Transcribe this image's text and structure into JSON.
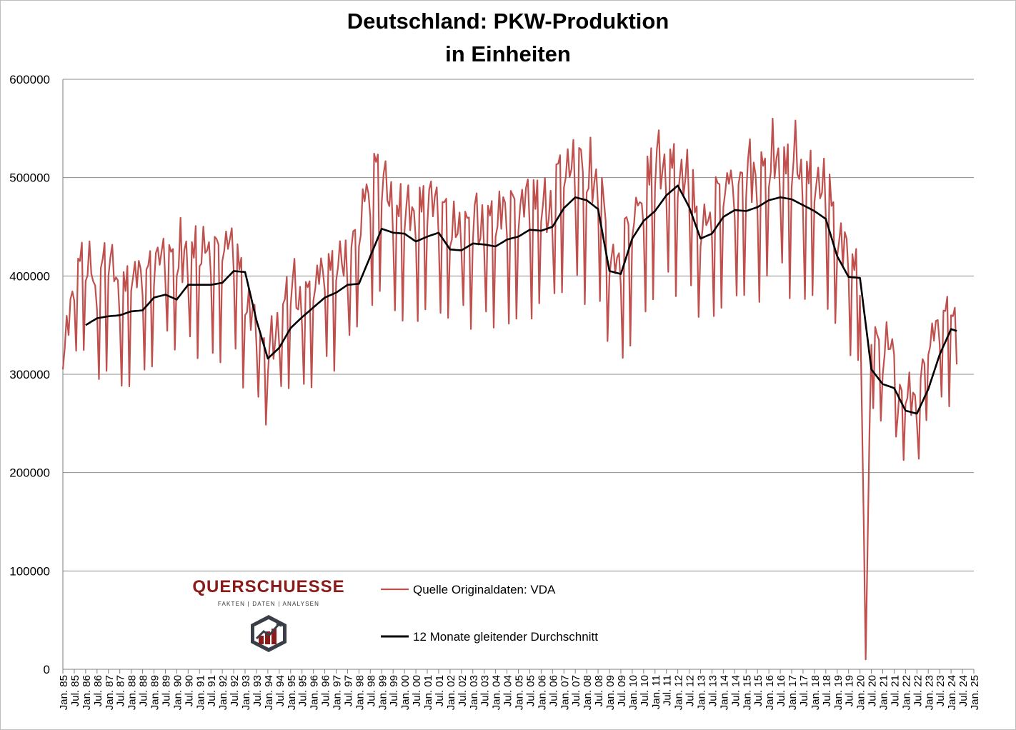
{
  "chart_data": {
    "type": "line",
    "title": "Deutschland: PKW-Produktion",
    "subtitle": "in Einheiten",
    "xlabel": "",
    "ylabel": "",
    "ylim": [
      0,
      600000
    ],
    "yticks": [
      0,
      100000,
      200000,
      300000,
      400000,
      500000,
      600000
    ],
    "ytick_labels": [
      "0",
      "100000",
      "200000",
      "300000",
      "400000",
      "500000",
      "600000"
    ],
    "x_start": "1985-01",
    "x_end": "2025-01",
    "xtick_labels": [
      "Jan. 85",
      "Jul. 85",
      "Jan. 86",
      "Jul. 86",
      "Jan. 87",
      "Jul. 87",
      "Jan. 88",
      "Jul. 88",
      "Jan. 89",
      "Jul. 89",
      "Jan. 90",
      "Jul. 90",
      "Jan. 91",
      "Jul. 91",
      "Jan. 92",
      "Jul. 92",
      "Jan. 93",
      "Jul. 93",
      "Jan. 94",
      "Jul. 94",
      "Jan. 95",
      "Jul. 95",
      "Jan. 96",
      "Jul. 96",
      "Jan. 97",
      "Jul. 97",
      "Jan. 98",
      "Jul. 98",
      "Jan. 99",
      "Jul. 99",
      "Jan. 00",
      "Jul. 00",
      "Jan. 01",
      "Jul. 01",
      "Jan. 02",
      "Jul. 02",
      "Jan. 03",
      "Jul. 03",
      "Jan. 04",
      "Jul. 04",
      "Jan. 05",
      "Jul. 05",
      "Jan. 06",
      "Jul. 06",
      "Jan. 07",
      "Jul. 07",
      "Jan. 08",
      "Jul. 08",
      "Jan. 09",
      "Jul. 09",
      "Jan. 10",
      "Jul. 10",
      "Jan. 11",
      "Jul. 11",
      "Jan. 12",
      "Jul. 12",
      "Jan. 13",
      "Jul. 13",
      "Jan. 14",
      "Jul. 14",
      "Jan. 15",
      "Jul. 15",
      "Jan. 16",
      "Jul. 16",
      "Jan. 17",
      "Jul. 17",
      "Jan. 18",
      "Jul. 18",
      "Jan. 19",
      "Jul. 19",
      "Jan. 20",
      "Jul. 20",
      "Jan. 21",
      "Jul. 21",
      "Jan. 22",
      "Jul. 22",
      "Jan. 23",
      "Jul. 23",
      "Jan. 24",
      "Jul. 24",
      "Jan. 25"
    ],
    "grid": true,
    "legend_position": "bottom-center",
    "series": [
      {
        "name": "Quelle Originaldaten: VDA",
        "color": "#c0504d",
        "style": "monthly",
        "x": [
          "1985-01",
          "1985-07",
          "1986-01",
          "1986-07",
          "1987-01",
          "1987-07",
          "1988-01",
          "1988-07",
          "1989-01",
          "1989-07",
          "1990-01",
          "1990-07",
          "1991-01",
          "1991-07",
          "1992-01",
          "1992-07",
          "1993-01",
          "1993-07",
          "1994-01",
          "1994-07",
          "1995-01",
          "1995-07",
          "1996-01",
          "1996-07",
          "1997-01",
          "1997-07",
          "1998-01",
          "1998-07",
          "1999-01",
          "1999-07",
          "2000-01",
          "2000-07",
          "2001-01",
          "2001-07",
          "2002-01",
          "2002-07",
          "2003-01",
          "2003-07",
          "2004-01",
          "2004-07",
          "2005-01",
          "2005-07",
          "2006-01",
          "2006-07",
          "2007-01",
          "2007-07",
          "2008-01",
          "2008-07",
          "2009-01",
          "2009-07",
          "2010-01",
          "2010-07",
          "2011-01",
          "2011-07",
          "2012-01",
          "2012-07",
          "2013-01",
          "2013-07",
          "2014-01",
          "2014-07",
          "2015-01",
          "2015-07",
          "2016-01",
          "2016-07",
          "2017-01",
          "2017-07",
          "2018-01",
          "2018-07",
          "2019-01",
          "2019-07",
          "2020-01",
          "2020-04",
          "2020-07",
          "2021-01",
          "2021-07",
          "2021-09",
          "2022-01",
          "2022-07",
          "2023-01",
          "2023-07",
          "2024-01",
          "2024-04"
        ],
        "y": [
          305000,
          375000,
          395000,
          365000,
          400000,
          355000,
          385000,
          380000,
          390000,
          395000,
          400000,
          390000,
          410000,
          400000,
          415000,
          405000,
          360000,
          330000,
          300000,
          330000,
          370000,
          350000,
          375000,
          385000,
          395000,
          390000,
          430000,
          460000,
          475000,
          440000,
          445000,
          435000,
          450000,
          440000,
          430000,
          425000,
          435000,
          425000,
          440000,
          440000,
          445000,
          450000,
          455000,
          440000,
          490000,
          475000,
          485000,
          470000,
          400000,
          390000,
          440000,
          450000,
          490000,
          475000,
          480000,
          470000,
          430000,
          440000,
          470000,
          460000,
          480000,
          465000,
          490000,
          475000,
          490000,
          465000,
          475000,
          460000,
          420000,
          400000,
          380000,
          10000,
          330000,
          300000,
          320000,
          260000,
          270000,
          250000,
          320000,
          330000,
          360000,
          310000
        ]
      },
      {
        "name": "12 Monate gleitender Durchschnitt",
        "color": "#000000",
        "style": "moving_average",
        "x": [
          "1986-01",
          "1986-07",
          "1987-01",
          "1987-07",
          "1988-01",
          "1988-07",
          "1989-01",
          "1989-07",
          "1990-01",
          "1990-07",
          "1991-01",
          "1991-07",
          "1992-01",
          "1992-07",
          "1993-01",
          "1993-07",
          "1994-01",
          "1994-07",
          "1995-01",
          "1995-07",
          "1996-01",
          "1996-07",
          "1997-01",
          "1997-07",
          "1998-01",
          "1998-07",
          "1999-01",
          "1999-07",
          "2000-01",
          "2000-07",
          "2001-01",
          "2001-07",
          "2002-01",
          "2002-07",
          "2003-01",
          "2003-07",
          "2004-01",
          "2004-07",
          "2005-01",
          "2005-07",
          "2006-01",
          "2006-07",
          "2007-01",
          "2007-07",
          "2008-01",
          "2008-07",
          "2009-01",
          "2009-07",
          "2010-01",
          "2010-07",
          "2011-01",
          "2011-07",
          "2012-01",
          "2012-07",
          "2013-01",
          "2013-07",
          "2014-01",
          "2014-07",
          "2015-01",
          "2015-07",
          "2016-01",
          "2016-07",
          "2017-01",
          "2017-07",
          "2018-01",
          "2018-07",
          "2019-01",
          "2019-07",
          "2020-01",
          "2020-07",
          "2021-01",
          "2021-07",
          "2022-01",
          "2022-07",
          "2023-01",
          "2023-07",
          "2024-01",
          "2024-04"
        ],
        "y": [
          350000,
          357000,
          359000,
          360000,
          364000,
          365000,
          378000,
          381000,
          376000,
          391000,
          391000,
          391000,
          393000,
          405000,
          404000,
          355000,
          316000,
          327000,
          347000,
          358000,
          368000,
          378000,
          383000,
          391000,
          392000,
          420000,
          448000,
          444000,
          443000,
          435000,
          440000,
          444000,
          427000,
          426000,
          433000,
          432000,
          430000,
          437000,
          440000,
          447000,
          446000,
          450000,
          469000,
          480000,
          477000,
          468000,
          405000,
          402000,
          438000,
          456000,
          466000,
          482000,
          492000,
          470000,
          438000,
          443000,
          460000,
          467000,
          466000,
          470000,
          477000,
          480000,
          478000,
          472000,
          466000,
          458000,
          420000,
          399000,
          398000,
          305000,
          290000,
          286000,
          263000,
          260000,
          285000,
          320000,
          346000,
          344000
        ]
      }
    ]
  },
  "logo": {
    "brand": "QUERSCHUESSE",
    "tagline": "FAKTEN | DATEN | ANALYSEN",
    "icon": "hexagon-chart-arrow-icon",
    "color": "#8b1a1a"
  }
}
